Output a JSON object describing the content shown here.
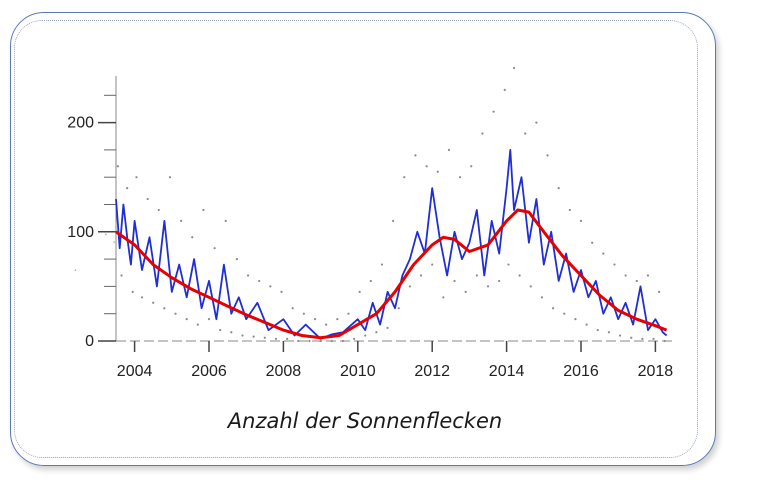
{
  "caption": "Anzahl der Sonnenflecken",
  "chart_data": {
    "type": "line",
    "xlabel": "",
    "ylabel": "",
    "x_ticks": [
      "2004",
      "2006",
      "2008",
      "2010",
      "2012",
      "2014",
      "2016",
      "2018"
    ],
    "y_ticks": [
      "0",
      "100",
      "200"
    ],
    "xlim": [
      2003.5,
      2018.5
    ],
    "ylim": [
      0,
      250
    ],
    "colors": {
      "daily": "#8a8a8a",
      "monthly": "#1f2ed6",
      "smoothed": "#e60000"
    },
    "series": [
      {
        "role": "smoothed",
        "x": [
          2003.5,
          2004.0,
          2004.5,
          2005.0,
          2005.5,
          2006.0,
          2006.5,
          2007.0,
          2007.5,
          2008.0,
          2008.5,
          2009.0,
          2009.5,
          2010.0,
          2010.5,
          2011.0,
          2011.5,
          2012.0,
          2012.3,
          2012.6,
          2013.0,
          2013.5,
          2014.0,
          2014.3,
          2014.6,
          2015.0,
          2015.5,
          2016.0,
          2016.5,
          2017.0,
          2017.5,
          2018.0,
          2018.3
        ],
        "y": [
          100,
          88,
          70,
          58,
          48,
          40,
          32,
          24,
          17,
          10,
          5,
          3,
          5,
          15,
          25,
          45,
          70,
          88,
          95,
          93,
          82,
          88,
          110,
          120,
          118,
          100,
          78,
          60,
          42,
          28,
          20,
          14,
          10
        ]
      },
      {
        "role": "monthly",
        "x": [
          2003.5,
          2003.6,
          2003.7,
          2003.8,
          2003.9,
          2004.0,
          2004.2,
          2004.4,
          2004.6,
          2004.8,
          2005.0,
          2005.2,
          2005.4,
          2005.6,
          2005.8,
          2006.0,
          2006.2,
          2006.4,
          2006.6,
          2006.8,
          2007.0,
          2007.3,
          2007.6,
          2008.0,
          2008.3,
          2008.6,
          2009.0,
          2009.3,
          2009.6,
          2010.0,
          2010.2,
          2010.4,
          2010.6,
          2010.8,
          2011.0,
          2011.2,
          2011.4,
          2011.6,
          2011.8,
          2012.0,
          2012.2,
          2012.4,
          2012.6,
          2012.8,
          2013.0,
          2013.2,
          2013.4,
          2013.6,
          2013.8,
          2014.0,
          2014.1,
          2014.2,
          2014.4,
          2014.6,
          2014.8,
          2015.0,
          2015.2,
          2015.4,
          2015.6,
          2015.8,
          2016.0,
          2016.2,
          2016.4,
          2016.6,
          2016.8,
          2017.0,
          2017.2,
          2017.4,
          2017.6,
          2017.8,
          2018.0,
          2018.2,
          2018.3
        ],
        "y": [
          130,
          85,
          125,
          95,
          70,
          110,
          65,
          95,
          50,
          110,
          45,
          70,
          40,
          75,
          30,
          55,
          20,
          70,
          25,
          40,
          20,
          35,
          10,
          20,
          5,
          15,
          2,
          6,
          8,
          20,
          10,
          35,
          15,
          45,
          30,
          60,
          75,
          100,
          80,
          140,
          95,
          60,
          100,
          75,
          90,
          120,
          60,
          110,
          80,
          140,
          175,
          120,
          150,
          90,
          130,
          70,
          100,
          55,
          80,
          45,
          65,
          40,
          55,
          25,
          40,
          20,
          35,
          15,
          50,
          10,
          20,
          8,
          5
        ]
      },
      {
        "role": "daily",
        "x": [
          2003.55,
          2003.65,
          2003.8,
          2003.95,
          2004.05,
          2004.2,
          2004.35,
          2004.5,
          2004.65,
          2004.8,
          2004.95,
          2005.1,
          2005.25,
          2005.4,
          2005.55,
          2005.7,
          2005.85,
          2006.0,
          2006.15,
          2006.3,
          2006.45,
          2006.6,
          2006.75,
          2006.9,
          2007.05,
          2007.2,
          2007.35,
          2007.5,
          2007.65,
          2007.8,
          2007.95,
          2008.1,
          2008.25,
          2008.4,
          2008.55,
          2008.7,
          2008.85,
          2009.0,
          2009.15,
          2009.3,
          2009.45,
          2009.6,
          2009.75,
          2009.9,
          2010.05,
          2010.2,
          2010.35,
          2010.5,
          2010.65,
          2010.8,
          2010.95,
          2011.1,
          2011.25,
          2011.4,
          2011.55,
          2011.7,
          2011.85,
          2012.0,
          2012.15,
          2012.3,
          2012.45,
          2012.6,
          2012.75,
          2012.9,
          2013.05,
          2013.2,
          2013.35,
          2013.5,
          2013.65,
          2013.8,
          2013.95,
          2014.05,
          2014.2,
          2014.35,
          2014.5,
          2014.65,
          2014.8,
          2014.95,
          2015.1,
          2015.25,
          2015.4,
          2015.55,
          2015.7,
          2015.85,
          2016.0,
          2016.15,
          2016.3,
          2016.45,
          2016.6,
          2016.75,
          2016.9,
          2017.05,
          2017.2,
          2017.35,
          2017.5,
          2017.65,
          2017.8,
          2017.95,
          2018.1,
          2018.25
        ],
        "y": [
          160,
          60,
          140,
          45,
          150,
          40,
          130,
          35,
          120,
          30,
          150,
          25,
          110,
          20,
          95,
          15,
          120,
          20,
          85,
          10,
          110,
          8,
          75,
          5,
          60,
          4,
          55,
          3,
          50,
          2,
          45,
          2,
          30,
          0,
          25,
          0,
          20,
          0,
          15,
          0,
          20,
          0,
          25,
          2,
          45,
          5,
          55,
          8,
          70,
          12,
          110,
          30,
          150,
          50,
          170,
          60,
          160,
          70,
          155,
          40,
          175,
          55,
          150,
          45,
          160,
          60,
          190,
          50,
          210,
          55,
          230,
          70,
          250,
          60,
          190,
          50,
          200,
          40,
          170,
          30,
          140,
          25,
          120,
          20,
          110,
          15,
          90,
          10,
          80,
          8,
          70,
          5,
          60,
          3,
          55,
          2,
          60,
          2,
          45,
          0
        ]
      }
    ]
  }
}
